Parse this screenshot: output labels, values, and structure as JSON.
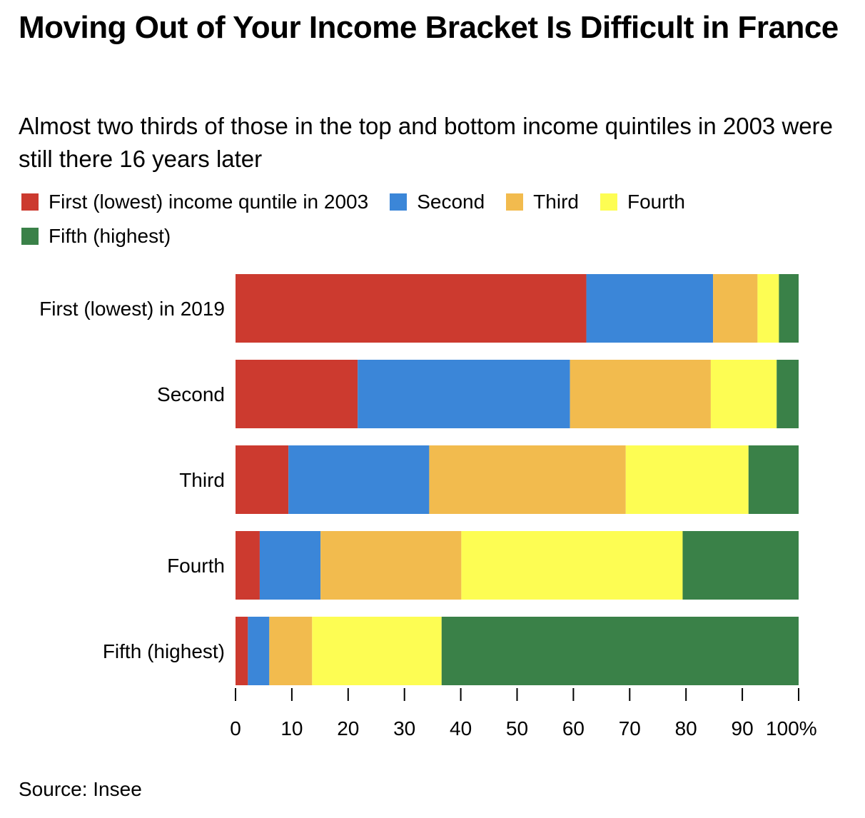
{
  "title": "Moving Out of Your Income Bracket Is Difficult in France",
  "subtitle": "Almost two thirds of those in the top and bottom income quintiles in 2003 were still there 16 years later",
  "source": "Source: Insee",
  "chart_data": {
    "type": "bar",
    "orientation": "horizontal",
    "stacked": true,
    "categories": [
      "First (lowest) in 2019",
      "Second",
      "Third",
      "Fourth",
      "Fifth (highest)"
    ],
    "series": [
      {
        "name": "First (lowest) income quntile in 2003",
        "color": "#cc3a2f",
        "values": [
          62.3,
          21.7,
          9.4,
          4.3,
          2.2
        ]
      },
      {
        "name": "Second",
        "color": "#3b86d8",
        "values": [
          22.5,
          37.7,
          25.0,
          10.8,
          3.8
        ]
      },
      {
        "name": "Third",
        "color": "#f2bb4e",
        "values": [
          7.9,
          25.0,
          34.9,
          25.0,
          7.6
        ]
      },
      {
        "name": "Fourth",
        "color": "#fdfd53",
        "values": [
          3.8,
          11.7,
          21.8,
          39.3,
          23.0
        ]
      },
      {
        "name": "Fifth (highest)",
        "color": "#3a8148",
        "values": [
          3.5,
          3.9,
          8.9,
          20.6,
          63.4
        ]
      }
    ],
    "xlim": [
      0,
      100
    ],
    "xticks": [
      "0",
      "10",
      "20",
      "30",
      "40",
      "50",
      "60",
      "70",
      "80",
      "90",
      "100%"
    ],
    "legend_position": "top",
    "grid": false
  }
}
